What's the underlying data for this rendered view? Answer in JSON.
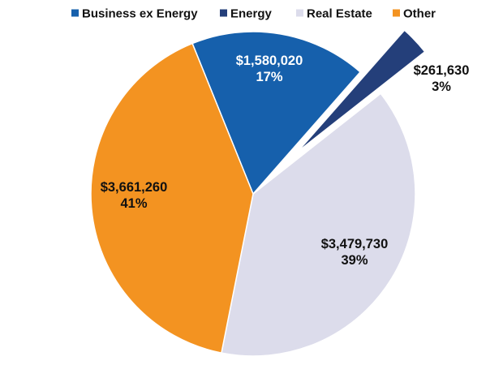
{
  "chart_data": {
    "type": "pie",
    "title": "",
    "legend_position": "top",
    "slices": [
      {
        "name": "Business ex Energy",
        "value": 1580020,
        "value_label": "$1,580,020",
        "percent_label": "17%",
        "color": "#1660AC",
        "label_color": "#ffffff",
        "exploded": false
      },
      {
        "name": "Energy",
        "value": 261630,
        "value_label": "$261,630",
        "percent_label": "3%",
        "color": "#243F7A",
        "label_color": "#111111",
        "exploded": true
      },
      {
        "name": "Real Estate",
        "value": 3479730,
        "value_label": "$3,479,730",
        "percent_label": "39%",
        "color": "#DCDCEB",
        "label_color": "#111111",
        "exploded": false
      },
      {
        "name": "Other",
        "value": 3661260,
        "value_label": "$3,661,260",
        "percent_label": "41%",
        "color": "#F39321",
        "label_color": "#111111",
        "exploded": false
      }
    ]
  }
}
